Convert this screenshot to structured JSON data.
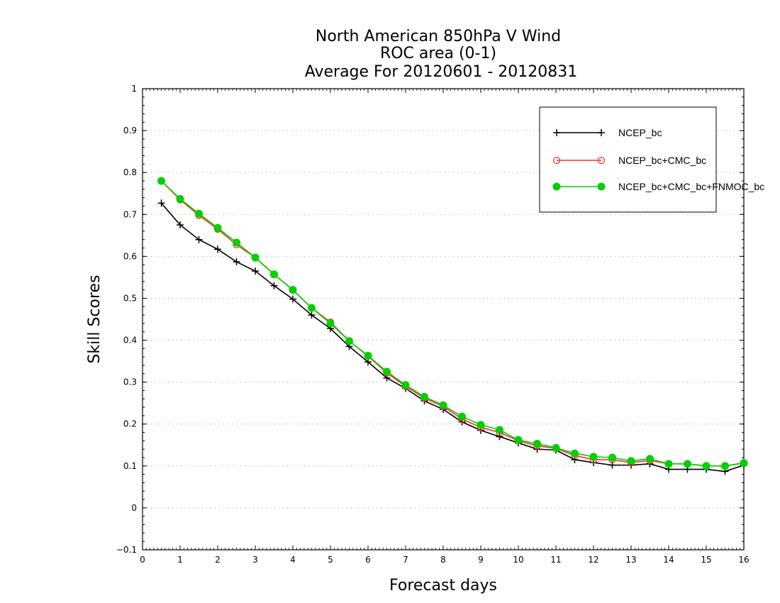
{
  "chart_data": {
    "type": "line",
    "title": [
      "North American 850hPa V Wind",
      "ROC area (0-1)",
      "Average For 20120601 - 20120831"
    ],
    "xlabel": "Forecast days",
    "ylabel": "Skill Scores",
    "xlim": [
      0,
      16
    ],
    "ylim": [
      -0.1,
      1
    ],
    "xticks": [
      "0",
      "1",
      "2",
      "3",
      "4",
      "5",
      "6",
      "7",
      "8",
      "9",
      "10",
      "11",
      "12",
      "13",
      "14",
      "15",
      "16"
    ],
    "yticks": [
      "−0.1",
      "0",
      "0.1",
      "0.2",
      "0.3",
      "0.4",
      "0.5",
      "0.6",
      "0.7",
      "0.8",
      "0.9",
      "1"
    ],
    "grid": true,
    "legend_position": "top-right",
    "x": [
      0.5,
      1,
      1.5,
      2,
      2.5,
      3,
      3.5,
      4,
      4.5,
      5,
      5.5,
      6,
      6.5,
      7,
      7.5,
      8,
      8.5,
      9,
      9.5,
      10,
      10.5,
      11,
      11.5,
      12,
      12.5,
      13,
      13.5,
      14,
      14.5,
      15,
      15.5,
      16
    ],
    "series": [
      {
        "name": "NCEP_bc",
        "color": "#000000",
        "marker": "plus",
        "values": [
          0.727,
          0.675,
          0.64,
          0.617,
          0.587,
          0.565,
          0.53,
          0.498,
          0.46,
          0.428,
          0.385,
          0.348,
          0.31,
          0.285,
          0.255,
          0.235,
          0.205,
          0.185,
          0.17,
          0.155,
          0.14,
          0.138,
          0.115,
          0.108,
          0.102,
          0.102,
          0.105,
          0.092,
          0.092,
          0.092,
          0.087,
          0.102
        ]
      },
      {
        "name": "NCEP_bc+CMC_bc",
        "color": "#ff3030",
        "marker": "open-circle",
        "values": [
          0.78,
          0.735,
          0.698,
          0.665,
          0.628,
          0.597,
          0.557,
          0.52,
          0.477,
          0.443,
          0.398,
          0.362,
          0.322,
          0.29,
          0.262,
          0.242,
          0.212,
          0.192,
          0.18,
          0.16,
          0.148,
          0.142,
          0.125,
          0.115,
          0.115,
          0.108,
          0.113,
          0.105,
          0.105,
          0.1,
          0.1,
          0.107
        ]
      },
      {
        "name": "NCEP_bc+CMC_bc+FNMOC_bc",
        "color": "#00d000",
        "marker": "filled-circle",
        "values": [
          0.78,
          0.737,
          0.702,
          0.668,
          0.633,
          0.597,
          0.557,
          0.52,
          0.477,
          0.44,
          0.398,
          0.363,
          0.325,
          0.293,
          0.265,
          0.245,
          0.218,
          0.198,
          0.186,
          0.162,
          0.153,
          0.143,
          0.13,
          0.122,
          0.12,
          0.112,
          0.117,
          0.105,
          0.105,
          0.1,
          0.1,
          0.107
        ]
      }
    ]
  }
}
